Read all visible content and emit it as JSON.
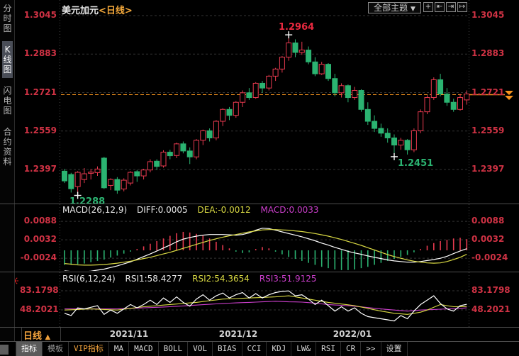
{
  "window": {
    "title_instrument": "美元加元",
    "title_period": "<日线>"
  },
  "sidebar": {
    "tabs": [
      {
        "key": "time-chart",
        "label": "分时图",
        "active": false
      },
      {
        "key": "kline-chart",
        "label": "K线图",
        "active": true
      },
      {
        "key": "flash-chart",
        "label": "闪电图",
        "active": false
      },
      {
        "key": "contract-info",
        "label": "合约资料",
        "active": false
      }
    ]
  },
  "header": {
    "theme_button": "全部主题",
    "theme_button_arrow": "▼",
    "icons": [
      {
        "name": "crosshair-icon",
        "glyph": "+"
      },
      {
        "name": "shrink-x-icon",
        "glyph": "⇤"
      },
      {
        "name": "expand-x-icon",
        "glyph": "⇥"
      },
      {
        "name": "pan-right-icon",
        "glyph": "↦"
      }
    ]
  },
  "main_chart": {
    "y_axis_labels": [
      "1.3045",
      "1.2883",
      "1.2721",
      "1.2559",
      "1.2397"
    ],
    "annotations": {
      "high": "1.2964",
      "low": "1.2288",
      "pullback_low": "1.2451"
    }
  },
  "macd_panel": {
    "title": "MACD(26,12,9)",
    "diff_label": "DIFF:0.0005",
    "dea_label": "DEA:-0.0012",
    "macd_label": "MACD:0.0033",
    "y_axis_labels": [
      "0.0088",
      "0.0032",
      "-0.0024"
    ],
    "sun_icon": "indicator-sun-icon"
  },
  "rsi_panel": {
    "title": "RSI(6,12,24)",
    "rsi1_label": "RSI1:58.4277",
    "rsi2_label": "RSI2:54.3654",
    "rsi3_label": "RSI3:51.9125",
    "y_axis_labels": [
      "83.1798",
      "48.2021"
    ]
  },
  "x_axis": {
    "period_label": "日线",
    "period_arrow": "▲",
    "dates": [
      "2021/11",
      "2021/12",
      "2022/01"
    ]
  },
  "toolbar": {
    "items": [
      {
        "key": "indicator",
        "label": "指标",
        "active": true
      },
      {
        "key": "template",
        "label": "模板",
        "dim": true
      },
      {
        "key": "vip-indicator",
        "label": "VIP指标",
        "vip": true
      },
      {
        "key": "ma",
        "label": "MA"
      },
      {
        "key": "macd",
        "label": "MACD"
      },
      {
        "key": "boll",
        "label": "BOLL"
      },
      {
        "key": "vol",
        "label": "VOL"
      },
      {
        "key": "bias",
        "label": "BIAS"
      },
      {
        "key": "cci",
        "label": "CCI"
      },
      {
        "key": "kdj",
        "label": "KDJ"
      },
      {
        "key": "lwr",
        "label": "LW&"
      },
      {
        "key": "rsi",
        "label": "RSI"
      },
      {
        "key": "cr",
        "label": "CR"
      },
      {
        "key": "more",
        "label": ">>"
      },
      {
        "key": "settings",
        "label": "设置"
      }
    ]
  },
  "colors": {
    "up": "#e83a4f",
    "down": "#2bb371",
    "axis_label": "#cf3244",
    "accent_orange": "#f7941d",
    "dea_yellow": "#d9d943",
    "macd_magenta": "#cc3fcc",
    "diff_white": "#ffffff",
    "grid": "#333333",
    "cross": "#ffffff"
  },
  "chart_data": [
    {
      "type": "candlestick",
      "title": "美元加元 日线",
      "x_dates": [
        "2021/11",
        "2021/12",
        "2022/01"
      ],
      "y_ticks": [
        1.3045,
        1.2883,
        1.2721,
        1.2559,
        1.2397
      ],
      "high_annotation": 1.2964,
      "low_annotation": 1.2288,
      "pullback_low_annotation": 1.2451,
      "current_price": 1.2721,
      "ohlc": [
        [
          1.239,
          1.24,
          1.234,
          1.2349
        ],
        [
          1.2376,
          1.2383,
          1.23,
          1.2316
        ],
        [
          1.2325,
          1.239,
          1.2288,
          1.2385
        ],
        [
          1.2355,
          1.2403,
          1.234,
          1.2379
        ],
        [
          1.2381,
          1.24,
          1.2355,
          1.2386
        ],
        [
          1.2384,
          1.241,
          1.237,
          1.2399
        ],
        [
          1.2445,
          1.245,
          1.2315,
          1.232
        ],
        [
          1.233,
          1.236,
          1.231,
          1.2355
        ],
        [
          1.2355,
          1.2365,
          1.2295,
          1.231
        ],
        [
          1.2315,
          1.236,
          1.2305,
          1.2352
        ],
        [
          1.234,
          1.239,
          1.233,
          1.2385
        ],
        [
          1.2388,
          1.2395,
          1.2345,
          1.237
        ],
        [
          1.237,
          1.24,
          1.2355,
          1.2395
        ],
        [
          1.2395,
          1.244,
          1.2385,
          1.243
        ],
        [
          1.2432,
          1.244,
          1.2395,
          1.241
        ],
        [
          1.2412,
          1.2478,
          1.2405,
          1.247
        ],
        [
          1.247,
          1.248,
          1.244,
          1.2455
        ],
        [
          1.2456,
          1.251,
          1.2445,
          1.2505
        ],
        [
          1.2505,
          1.2515,
          1.2465,
          1.2475
        ],
        [
          1.2475,
          1.249,
          1.242,
          1.245
        ],
        [
          1.245,
          1.2525,
          1.244,
          1.252
        ],
        [
          1.252,
          1.2565,
          1.25,
          1.256
        ],
        [
          1.256,
          1.257,
          1.2515,
          1.253
        ],
        [
          1.253,
          1.2605,
          1.252,
          1.26
        ],
        [
          1.26,
          1.2655,
          1.258,
          1.265
        ],
        [
          1.265,
          1.266,
          1.2605,
          1.2625
        ],
        [
          1.2625,
          1.2685,
          1.2615,
          1.268
        ],
        [
          1.268,
          1.273,
          1.266,
          1.272
        ],
        [
          1.272,
          1.274,
          1.269,
          1.27
        ],
        [
          1.27,
          1.2765,
          1.2695,
          1.276
        ],
        [
          1.276,
          1.277,
          1.272,
          1.274
        ],
        [
          1.274,
          1.2795,
          1.273,
          1.279
        ],
        [
          1.279,
          1.2825,
          1.277,
          1.282
        ],
        [
          1.282,
          1.2875,
          1.2805,
          1.287
        ],
        [
          1.287,
          1.2964,
          1.2855,
          1.293
        ],
        [
          1.293,
          1.2945,
          1.287,
          1.289
        ],
        [
          1.289,
          1.2935,
          1.288,
          1.29
        ],
        [
          1.29,
          1.2915,
          1.284,
          1.285
        ],
        [
          1.285,
          1.287,
          1.279,
          1.28
        ],
        [
          1.28,
          1.285,
          1.2795,
          1.284
        ],
        [
          1.284,
          1.2845,
          1.277,
          1.278
        ],
        [
          1.278,
          1.28,
          1.2705,
          1.272
        ],
        [
          1.272,
          1.276,
          1.27,
          1.275
        ],
        [
          1.275,
          1.2755,
          1.268,
          1.27
        ],
        [
          1.27,
          1.2745,
          1.269,
          1.273
        ],
        [
          1.273,
          1.2735,
          1.264,
          1.265
        ],
        [
          1.265,
          1.268,
          1.2585,
          1.26
        ],
        [
          1.26,
          1.2625,
          1.2555,
          1.257
        ],
        [
          1.257,
          1.259,
          1.2535,
          1.255
        ],
        [
          1.255,
          1.257,
          1.251,
          1.253
        ],
        [
          1.253,
          1.2545,
          1.2451,
          1.25
        ],
        [
          1.25,
          1.253,
          1.248,
          1.252
        ],
        [
          1.252,
          1.2525,
          1.246,
          1.248
        ],
        [
          1.248,
          1.257,
          1.247,
          1.256
        ],
        [
          1.256,
          1.265,
          1.255,
          1.264
        ],
        [
          1.264,
          1.271,
          1.263,
          1.27
        ],
        [
          1.27,
          1.2785,
          1.269,
          1.2775
        ],
        [
          1.2775,
          1.28,
          1.2705,
          1.2715
        ],
        [
          1.2715,
          1.274,
          1.2665,
          1.268
        ],
        [
          1.268,
          1.2695,
          1.264,
          1.265
        ],
        [
          1.265,
          1.2715,
          1.2645,
          1.27
        ],
        [
          1.269,
          1.273,
          1.267,
          1.2715
        ]
      ]
    },
    {
      "type": "line",
      "title": "MACD(26,12,9)",
      "y_ticks": [
        0.0088,
        0.0032,
        -0.0024
      ],
      "diff": [
        -0.0062,
        -0.0064,
        -0.0065,
        -0.0065,
        -0.0063,
        -0.006,
        -0.0057,
        -0.0052,
        -0.0047,
        -0.0041,
        -0.0035,
        -0.0027,
        -0.0019,
        -0.0011,
        -0.0002,
        0.0007,
        0.0016,
        0.0026,
        0.0034,
        0.0039,
        0.0043,
        0.0046,
        0.0048,
        0.0048,
        0.0048,
        0.0047,
        0.0046,
        0.0048,
        0.0053,
        0.0061,
        0.0067,
        0.0066,
        0.0061,
        0.0056,
        0.0051,
        0.0046,
        0.0041,
        0.0035,
        0.0029,
        0.0022,
        0.0016,
        0.0009,
        0.0003,
        -0.0003,
        -0.0008,
        -0.0012,
        -0.0017,
        -0.0021,
        -0.0025,
        -0.0029,
        -0.0032,
        -0.0034,
        -0.0036,
        -0.0036,
        -0.0034,
        -0.0031,
        -0.0028,
        -0.0024,
        -0.0018,
        -0.001,
        -0.0002,
        0.0005
      ],
      "dea": [
        -0.004,
        -0.0042,
        -0.0044,
        -0.0045,
        -0.0045,
        -0.0044,
        -0.0043,
        -0.0041,
        -0.0039,
        -0.0036,
        -0.0033,
        -0.0029,
        -0.0025,
        -0.0021,
        -0.0016,
        -0.0011,
        -0.0006,
        0.0,
        0.0006,
        0.0012,
        0.0018,
        0.0024,
        0.003,
        0.0035,
        0.004,
        0.0044,
        0.0048,
        0.0052,
        0.0056,
        0.0059,
        0.0062,
        0.0063,
        0.0063,
        0.0062,
        0.0061,
        0.0059,
        0.0057,
        0.0054,
        0.0051,
        0.0047,
        0.0043,
        0.0038,
        0.0033,
        0.0027,
        0.0021,
        0.0015,
        0.0008,
        0.0001,
        -0.0006,
        -0.0013,
        -0.0019,
        -0.0024,
        -0.0029,
        -0.0033,
        -0.0036,
        -0.0038,
        -0.0039,
        -0.0038,
        -0.0034,
        -0.0028,
        -0.0021,
        -0.0012
      ]
    },
    {
      "type": "line",
      "title": "RSI(6,12,24)",
      "y_ticks": [
        83.1798,
        48.2021
      ],
      "rsi1": [
        42,
        38,
        52,
        50,
        53,
        56,
        40,
        48,
        42,
        50,
        58,
        52,
        58,
        66,
        58,
        70,
        62,
        72,
        62,
        55,
        68,
        76,
        66,
        74,
        79,
        70,
        76,
        80,
        70,
        78,
        70,
        76,
        80,
        82,
        83,
        74,
        76,
        68,
        58,
        66,
        56,
        46,
        54,
        46,
        52,
        42,
        36,
        34,
        32,
        30,
        28,
        38,
        32,
        46,
        58,
        66,
        74,
        60,
        50,
        46,
        56,
        58.43
      ],
      "rsi2": [
        48,
        48.5,
        49,
        49.5,
        50,
        49.5,
        49,
        48.5,
        48,
        49.5,
        51,
        52.5,
        54,
        55,
        56,
        57,
        58,
        59,
        60,
        61,
        62,
        63.5,
        65,
        66.5,
        68,
        68.5,
        69,
        69.5,
        70,
        70.5,
        71,
        71.5,
        72,
        73,
        74,
        72,
        70,
        68,
        66,
        64,
        62,
        60.5,
        59,
        57.5,
        56,
        53.5,
        51,
        48.5,
        46,
        44,
        42,
        41,
        40,
        42,
        44,
        48,
        53,
        58,
        56,
        54,
        54.2,
        54.37
      ],
      "rsi3": [
        50,
        50,
        50,
        50,
        50,
        50,
        50,
        50,
        50,
        50.5,
        51,
        51.5,
        52,
        52.5,
        53,
        53.5,
        54,
        54.8,
        55.5,
        56.2,
        57,
        57.8,
        58.5,
        59.2,
        60,
        60.5,
        61,
        61.5,
        62,
        62.5,
        63,
        63.5,
        64,
        63.5,
        63,
        62.8,
        62.5,
        61.5,
        60.5,
        59.2,
        58,
        57.2,
        56.5,
        55.8,
        55,
        53.8,
        52.5,
        51.2,
        50,
        49,
        48,
        47,
        46,
        47,
        48,
        48.5,
        49,
        49.5,
        50,
        50.5,
        51,
        51.91
      ]
    }
  ]
}
